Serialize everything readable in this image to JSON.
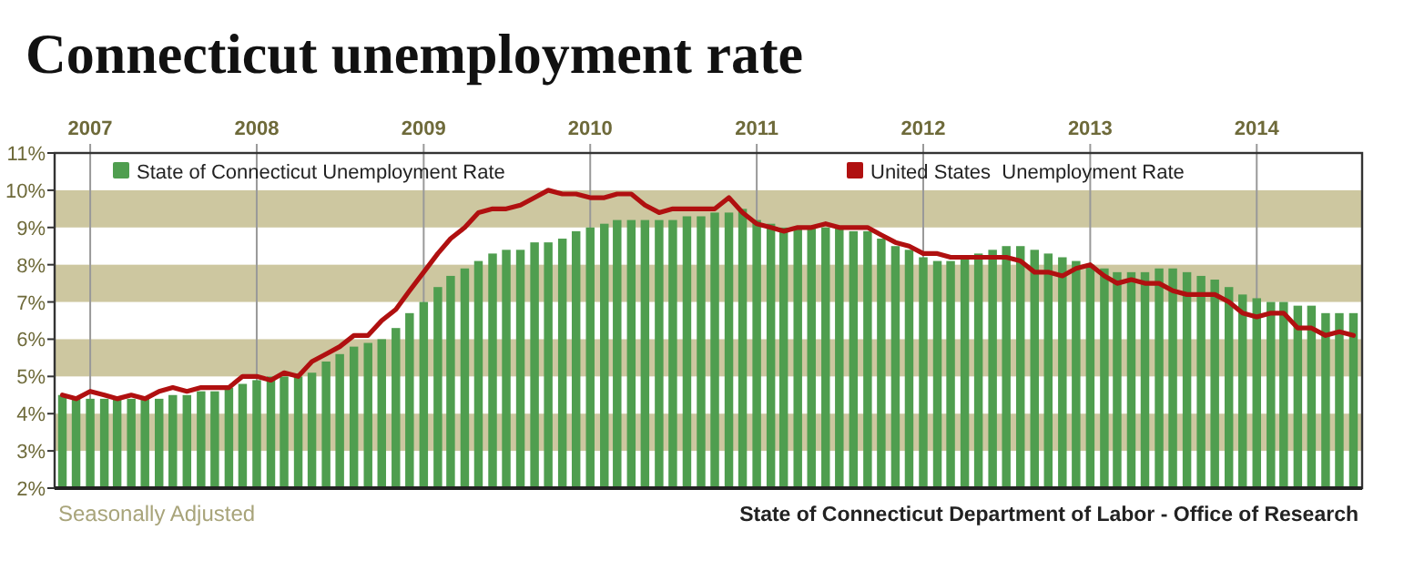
{
  "chart_data": {
    "type": "bar",
    "title": "Connecticut unemployment rate",
    "x": [
      "2006-11",
      "2006-12",
      "2007-01",
      "2007-02",
      "2007-03",
      "2007-04",
      "2007-05",
      "2007-06",
      "2007-07",
      "2007-08",
      "2007-09",
      "2007-10",
      "2007-11",
      "2007-12",
      "2008-01",
      "2008-02",
      "2008-03",
      "2008-04",
      "2008-05",
      "2008-06",
      "2008-07",
      "2008-08",
      "2008-09",
      "2008-10",
      "2008-11",
      "2008-12",
      "2009-01",
      "2009-02",
      "2009-03",
      "2009-04",
      "2009-05",
      "2009-06",
      "2009-07",
      "2009-08",
      "2009-09",
      "2009-10",
      "2009-11",
      "2009-12",
      "2010-01",
      "2010-02",
      "2010-03",
      "2010-04",
      "2010-05",
      "2010-06",
      "2010-07",
      "2010-08",
      "2010-09",
      "2010-10",
      "2010-11",
      "2010-12",
      "2011-01",
      "2011-02",
      "2011-03",
      "2011-04",
      "2011-05",
      "2011-06",
      "2011-07",
      "2011-08",
      "2011-09",
      "2011-10",
      "2011-11",
      "2011-12",
      "2012-01",
      "2012-02",
      "2012-03",
      "2012-04",
      "2012-05",
      "2012-06",
      "2012-07",
      "2012-08",
      "2012-09",
      "2012-10",
      "2012-11",
      "2012-12",
      "2013-01",
      "2013-02",
      "2013-03",
      "2013-04",
      "2013-05",
      "2013-06",
      "2013-07",
      "2013-08",
      "2013-09",
      "2013-10",
      "2013-11",
      "2013-12",
      "2014-01",
      "2014-02",
      "2014-03",
      "2014-04",
      "2014-05",
      "2014-06",
      "2014-07",
      "2014-08"
    ],
    "series": [
      {
        "name": "State of Connecticut Unemployment Rate",
        "color": "#4f9e4f",
        "values": [
          4.5,
          4.4,
          4.4,
          4.4,
          4.4,
          4.4,
          4.4,
          4.4,
          4.5,
          4.5,
          4.6,
          4.6,
          4.7,
          4.8,
          4.9,
          5.0,
          5.0,
          5.0,
          5.1,
          5.4,
          5.6,
          5.8,
          5.9,
          6.0,
          6.3,
          6.7,
          7.0,
          7.4,
          7.7,
          7.9,
          8.1,
          8.3,
          8.4,
          8.4,
          8.6,
          8.6,
          8.7,
          8.9,
          9.0,
          9.1,
          9.2,
          9.2,
          9.2,
          9.2,
          9.2,
          9.3,
          9.3,
          9.4,
          9.4,
          9.5,
          9.2,
          9.1,
          9.0,
          9.0,
          9.0,
          9.0,
          9.0,
          8.9,
          8.9,
          8.7,
          8.5,
          8.4,
          8.2,
          8.1,
          8.1,
          8.2,
          8.3,
          8.4,
          8.5,
          8.5,
          8.4,
          8.3,
          8.2,
          8.1,
          8.0,
          7.9,
          7.8,
          7.8,
          7.8,
          7.9,
          7.9,
          7.8,
          7.7,
          7.6,
          7.4,
          7.2,
          7.1,
          7.0,
          7.0,
          6.9,
          6.9,
          6.7,
          6.7,
          6.7
        ]
      },
      {
        "name": "United States  Unemployment Rate",
        "type": "line",
        "color": "#b01010",
        "values": [
          4.5,
          4.4,
          4.6,
          4.5,
          4.4,
          4.5,
          4.4,
          4.6,
          4.7,
          4.6,
          4.7,
          4.7,
          4.7,
          5.0,
          5.0,
          4.9,
          5.1,
          5.0,
          5.4,
          5.6,
          5.8,
          6.1,
          6.1,
          6.5,
          6.8,
          7.3,
          7.8,
          8.3,
          8.7,
          9.0,
          9.4,
          9.5,
          9.5,
          9.6,
          9.8,
          10.0,
          9.9,
          9.9,
          9.8,
          9.8,
          9.9,
          9.9,
          9.6,
          9.4,
          9.5,
          9.5,
          9.5,
          9.5,
          9.8,
          9.4,
          9.1,
          9.0,
          8.9,
          9.0,
          9.0,
          9.1,
          9.0,
          9.0,
          9.0,
          8.8,
          8.6,
          8.5,
          8.3,
          8.3,
          8.2,
          8.2,
          8.2,
          8.2,
          8.2,
          8.1,
          7.8,
          7.8,
          7.7,
          7.9,
          8.0,
          7.7,
          7.5,
          7.6,
          7.5,
          7.5,
          7.3,
          7.2,
          7.2,
          7.2,
          7.0,
          6.7,
          6.6,
          6.7,
          6.7,
          6.3,
          6.3,
          6.1,
          6.2,
          6.1
        ]
      }
    ],
    "xlim": [
      "2006-10-15",
      "2014-08-20"
    ],
    "xticks": [
      {
        "value": "2007",
        "label": "2007"
      },
      {
        "value": "2008",
        "label": "2008"
      },
      {
        "value": "2009",
        "label": "2009"
      },
      {
        "value": "2010",
        "label": "2010"
      },
      {
        "value": "2011",
        "label": "2011"
      },
      {
        "value": "2012",
        "label": "2012"
      },
      {
        "value": "2013",
        "label": "2013"
      },
      {
        "value": "2014",
        "label": "2014"
      }
    ],
    "ylim": [
      2,
      11
    ],
    "yticks": [
      {
        "value": 2,
        "label": "2%"
      },
      {
        "value": 3,
        "label": "3%"
      },
      {
        "value": 4,
        "label": "4%"
      },
      {
        "value": 5,
        "label": "5%"
      },
      {
        "value": 6,
        "label": "6%"
      },
      {
        "value": 7,
        "label": "7%"
      },
      {
        "value": 8,
        "label": "8%"
      },
      {
        "value": 9,
        "label": "9%"
      },
      {
        "value": 10,
        "label": "10%"
      },
      {
        "value": 11,
        "label": "11%"
      }
    ],
    "bands": [
      {
        "axis": "y",
        "from": 3,
        "to": 4,
        "color": "#cdc7a0"
      },
      {
        "axis": "y",
        "from": 5,
        "to": 6,
        "color": "#cdc7a0"
      },
      {
        "axis": "y",
        "from": 7,
        "to": 8,
        "color": "#cdc7a0"
      },
      {
        "axis": "y",
        "from": 9,
        "to": 10,
        "color": "#cdc7a0"
      }
    ],
    "grid": "x",
    "legend": "top",
    "annotations": [
      "Seasonally Adjusted",
      "State of Connecticut Department of Labor - Office of Research"
    ]
  }
}
